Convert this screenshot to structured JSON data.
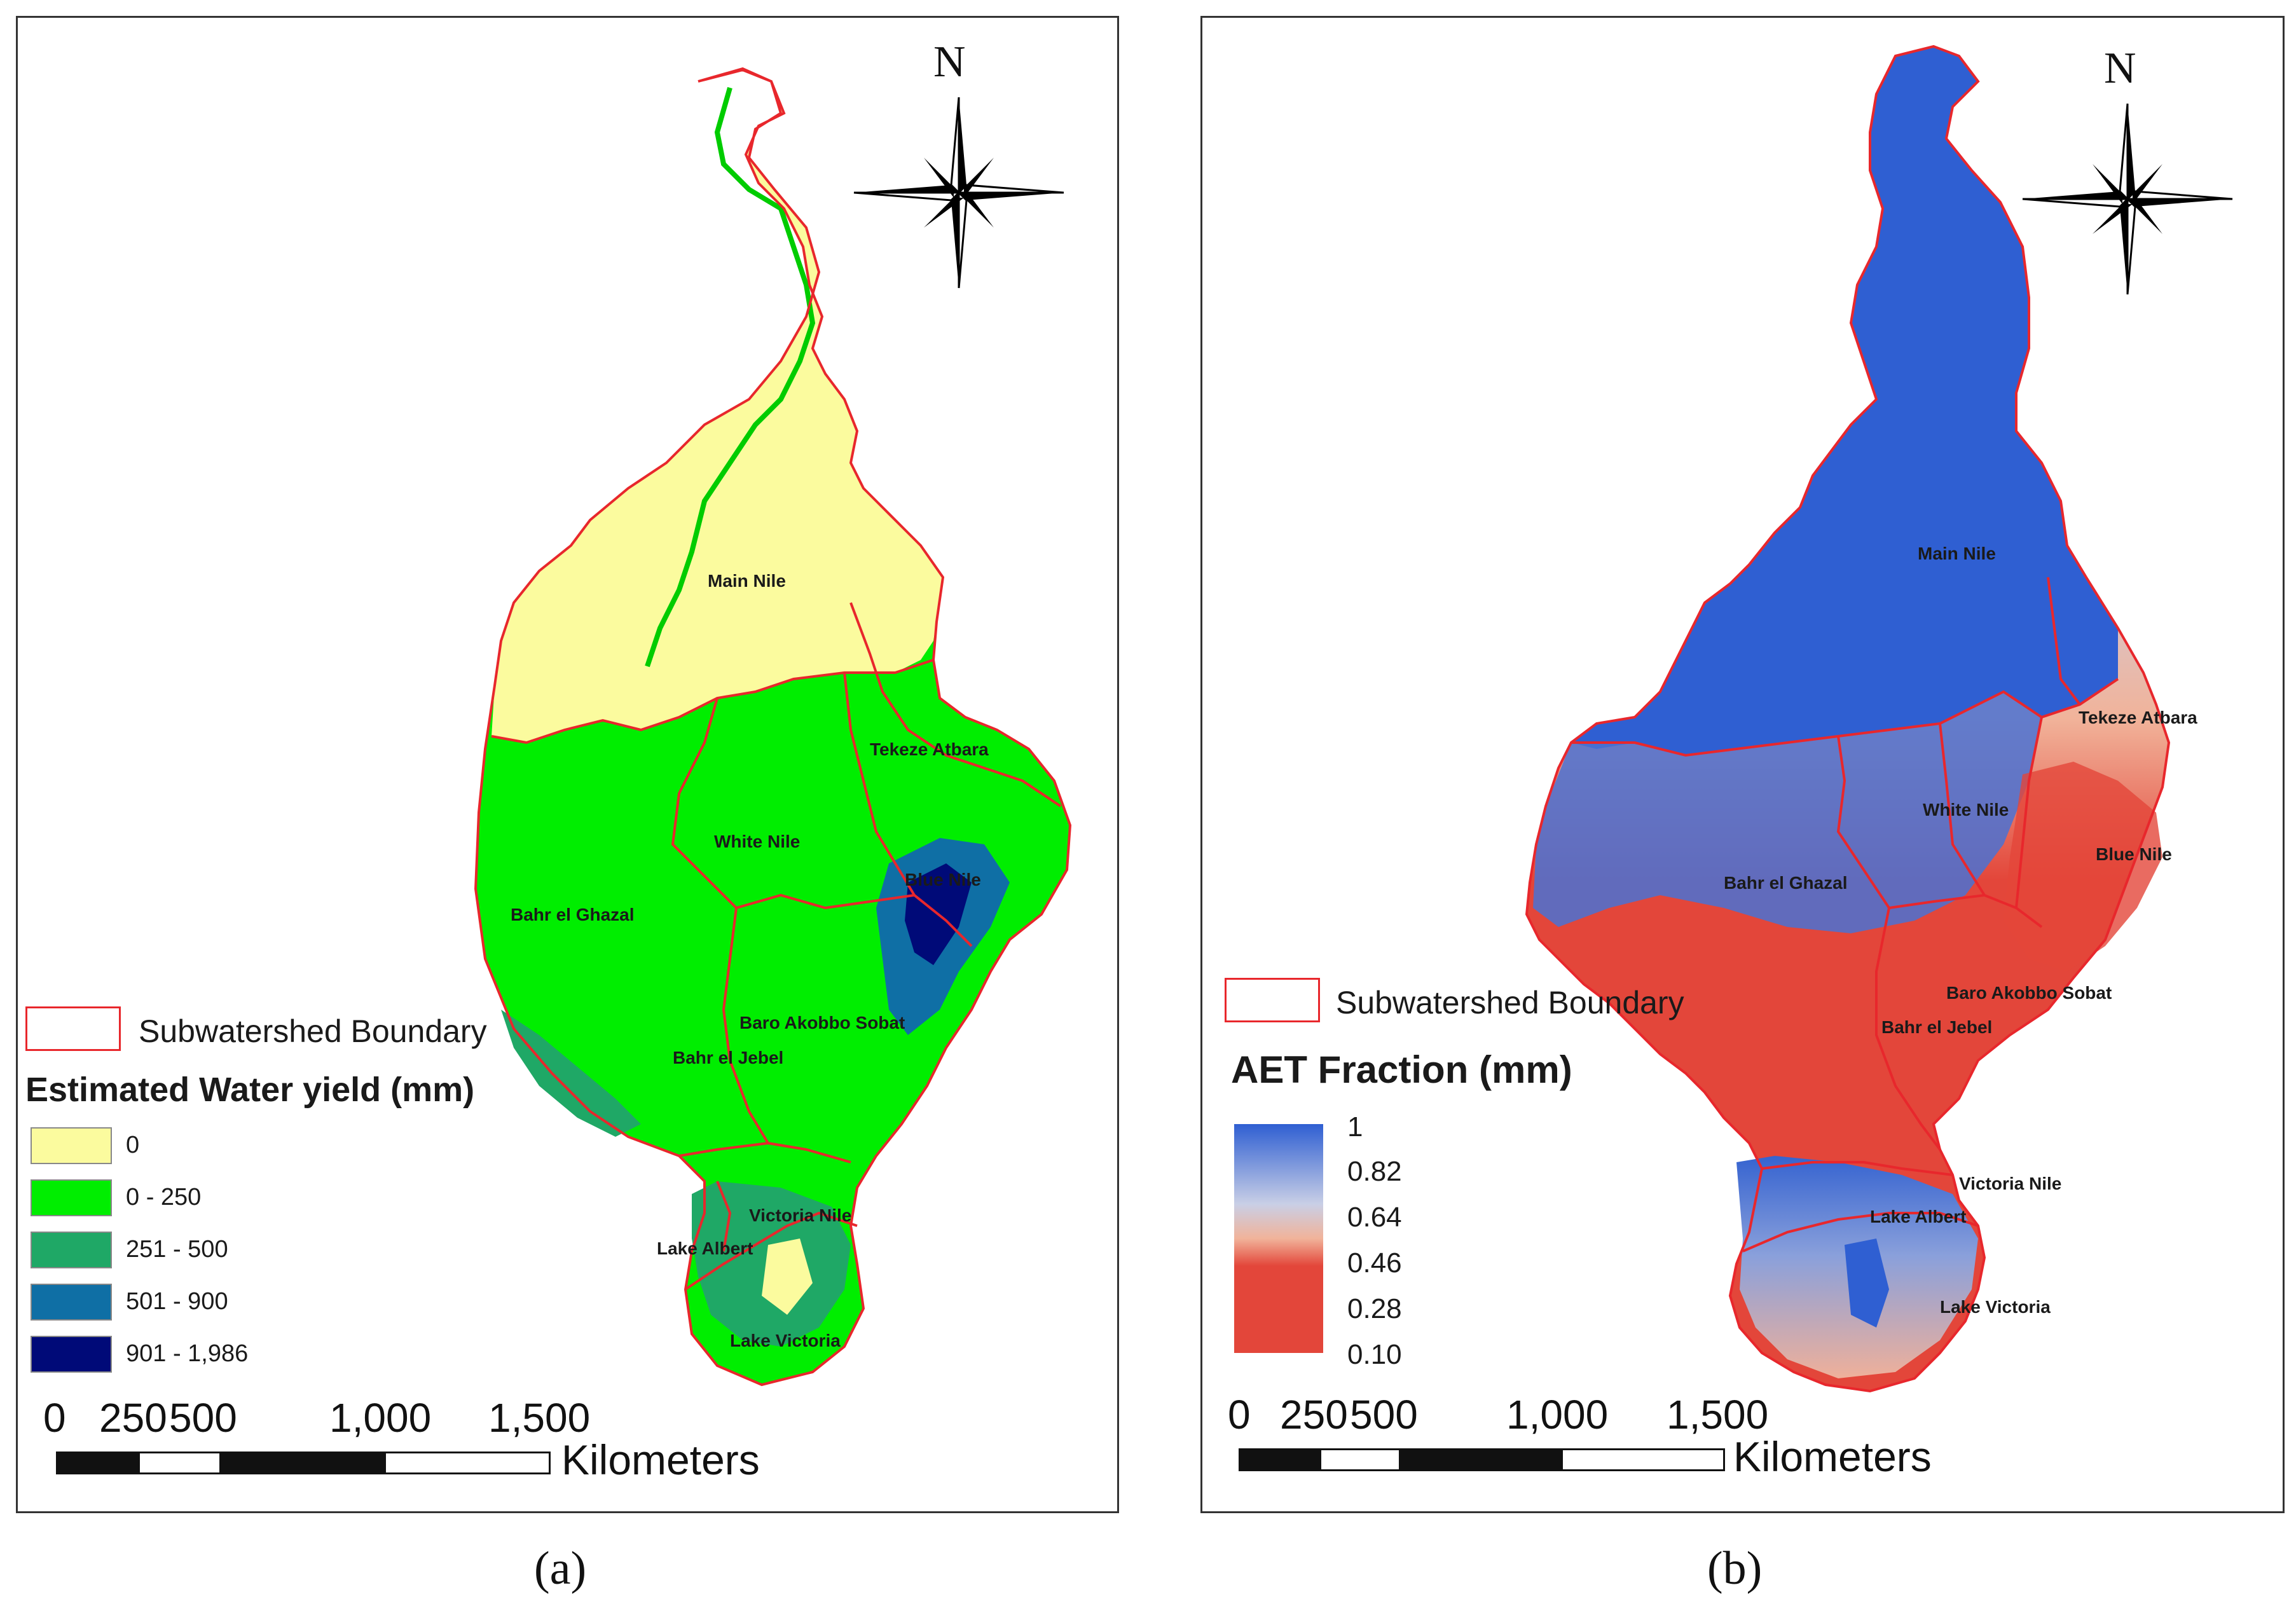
{
  "colors": {
    "boundary": "#e8272c",
    "class_0": "#fbfb9e",
    "class_0_250": "#00ee00",
    "class_251_500": "#1fa866",
    "class_501_900": "#0f6fa5",
    "class_901_1986": "#000a78",
    "aet_high": "#2f5fd2",
    "aet_mid": "#f1b39a",
    "aet_low": "#e3463a"
  },
  "panel_a": {
    "north": "N",
    "boundary_legend": "Subwatershed Boundary",
    "legend_title": "Estimated Water yield (mm)",
    "classes": [
      "0",
      "0 - 250",
      "251 - 500",
      "501 - 900",
      "901 - 1,986"
    ],
    "scale_numbers": [
      "0",
      "250",
      "500",
      "1,000",
      "1,500"
    ],
    "scale_unit": "Kilometers",
    "regions": {
      "main_nile": "Main Nile",
      "tekeze_atbara": "Tekeze Atbara",
      "white_nile": "White Nile",
      "blue_nile": "Blue Nile",
      "bahr_el_ghazal": "Bahr el Ghazal",
      "baro_akobbo_sobat": "Baro Akobbo Sobat",
      "bahr_el_jebel": "Bahr el Jebel",
      "victoria_nile": "Victoria Nile",
      "lake_albert": "Lake Albert",
      "lake_victoria": "Lake Victoria"
    },
    "caption": "(a)"
  },
  "panel_b": {
    "north": "N",
    "boundary_legend": "Subwatershed Boundary",
    "legend_title": "AET Fraction (mm)",
    "ramp_labels": [
      "1",
      "0.82",
      "0.64",
      "0.46",
      "0.28",
      "0.10"
    ],
    "scale_numbers": [
      "0",
      "250",
      "500",
      "1,000",
      "1,500"
    ],
    "scale_unit": "Kilometers",
    "regions": {
      "main_nile": "Main Nile",
      "tekeze_atbara": "Tekeze Atbara",
      "white_nile": "White Nile",
      "blue_nile": "Blue Nile",
      "bahr_el_ghazal": "Bahr el Ghazal",
      "baro_akobbo_sobat": "Baro Akobbo Sobat",
      "bahr_el_jebel": "Bahr el Jebel",
      "victoria_nile": "Victoria Nile",
      "lake_albert": "Lake Albert",
      "lake_victoria": "Lake Victoria"
    },
    "caption": "(b)"
  }
}
